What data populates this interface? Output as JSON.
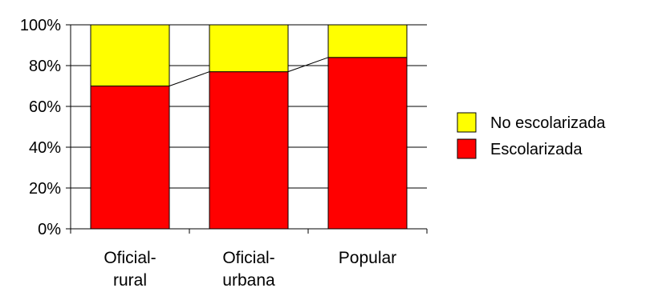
{
  "chart_data": {
    "type": "bar",
    "stacked": true,
    "normalized_percent": true,
    "categories": [
      [
        "Oficial-",
        "rural"
      ],
      [
        "Oficial-",
        "urbana"
      ],
      [
        "Popular"
      ]
    ],
    "series": [
      {
        "name": "Escolarizada",
        "color": "#ff0000",
        "values": [
          70,
          77,
          84
        ]
      },
      {
        "name": "No escolarizada",
        "color": "#ffff00",
        "values": [
          30,
          23,
          16
        ]
      }
    ],
    "y_ticks": [
      "0%",
      "20%",
      "40%",
      "60%",
      "80%",
      "100%"
    ],
    "ylim": [
      0,
      100
    ],
    "series_lines": true,
    "grid": true,
    "legend": {
      "placement": "right",
      "order": [
        "No escolarizada",
        "Escolarizada"
      ]
    }
  }
}
